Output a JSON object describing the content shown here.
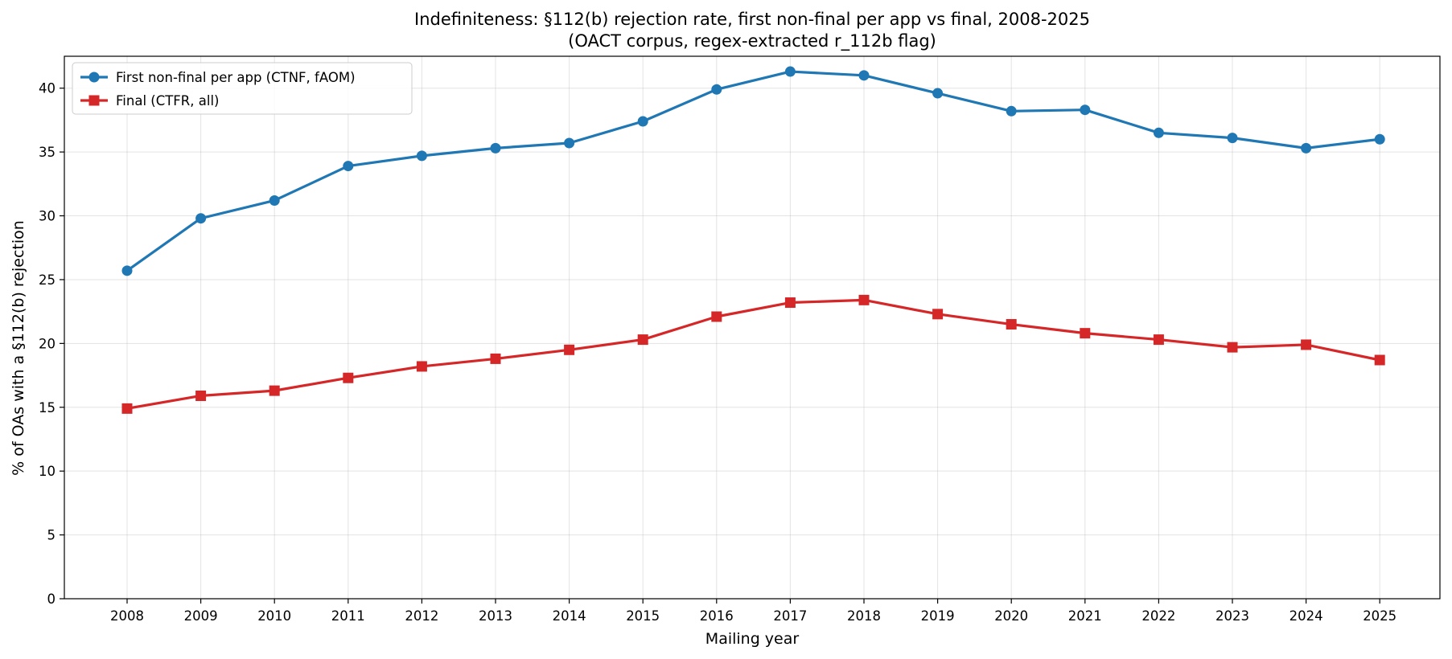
{
  "chart_data": {
    "type": "line",
    "title": "Indefiniteness: §112(b) rejection rate, first non-final per app vs final, 2008-2025",
    "subtitle": "(OACT corpus, regex-extracted r_112b flag)",
    "xlabel": "Mailing year",
    "ylabel": "% of OAs with a §112(b) rejection",
    "ylim": [
      0,
      42.5
    ],
    "yticks": [
      0,
      5,
      10,
      15,
      20,
      25,
      30,
      35,
      40
    ],
    "grid": true,
    "legend_position": "top-left",
    "categories": [
      "2008",
      "2009",
      "2010",
      "2011",
      "2012",
      "2013",
      "2014",
      "2015",
      "2016",
      "2017",
      "2018",
      "2019",
      "2020",
      "2021",
      "2022",
      "2023",
      "2024",
      "2025"
    ],
    "series": [
      {
        "name": "First non-final per app (CTNF, fAOM)",
        "color": "#1f77b4",
        "marker": "circle",
        "values": [
          25.7,
          29.8,
          31.2,
          33.9,
          34.7,
          35.3,
          35.7,
          37.4,
          39.9,
          41.3,
          41.0,
          39.6,
          38.2,
          38.3,
          36.5,
          36.1,
          35.3,
          36.0
        ]
      },
      {
        "name": "Final (CTFR, all)",
        "color": "#d62728",
        "marker": "square",
        "values": [
          14.9,
          15.9,
          16.3,
          17.3,
          18.2,
          18.8,
          19.5,
          20.3,
          22.1,
          23.2,
          23.4,
          22.3,
          21.5,
          20.8,
          20.3,
          19.7,
          19.9,
          18.7
        ]
      }
    ]
  }
}
